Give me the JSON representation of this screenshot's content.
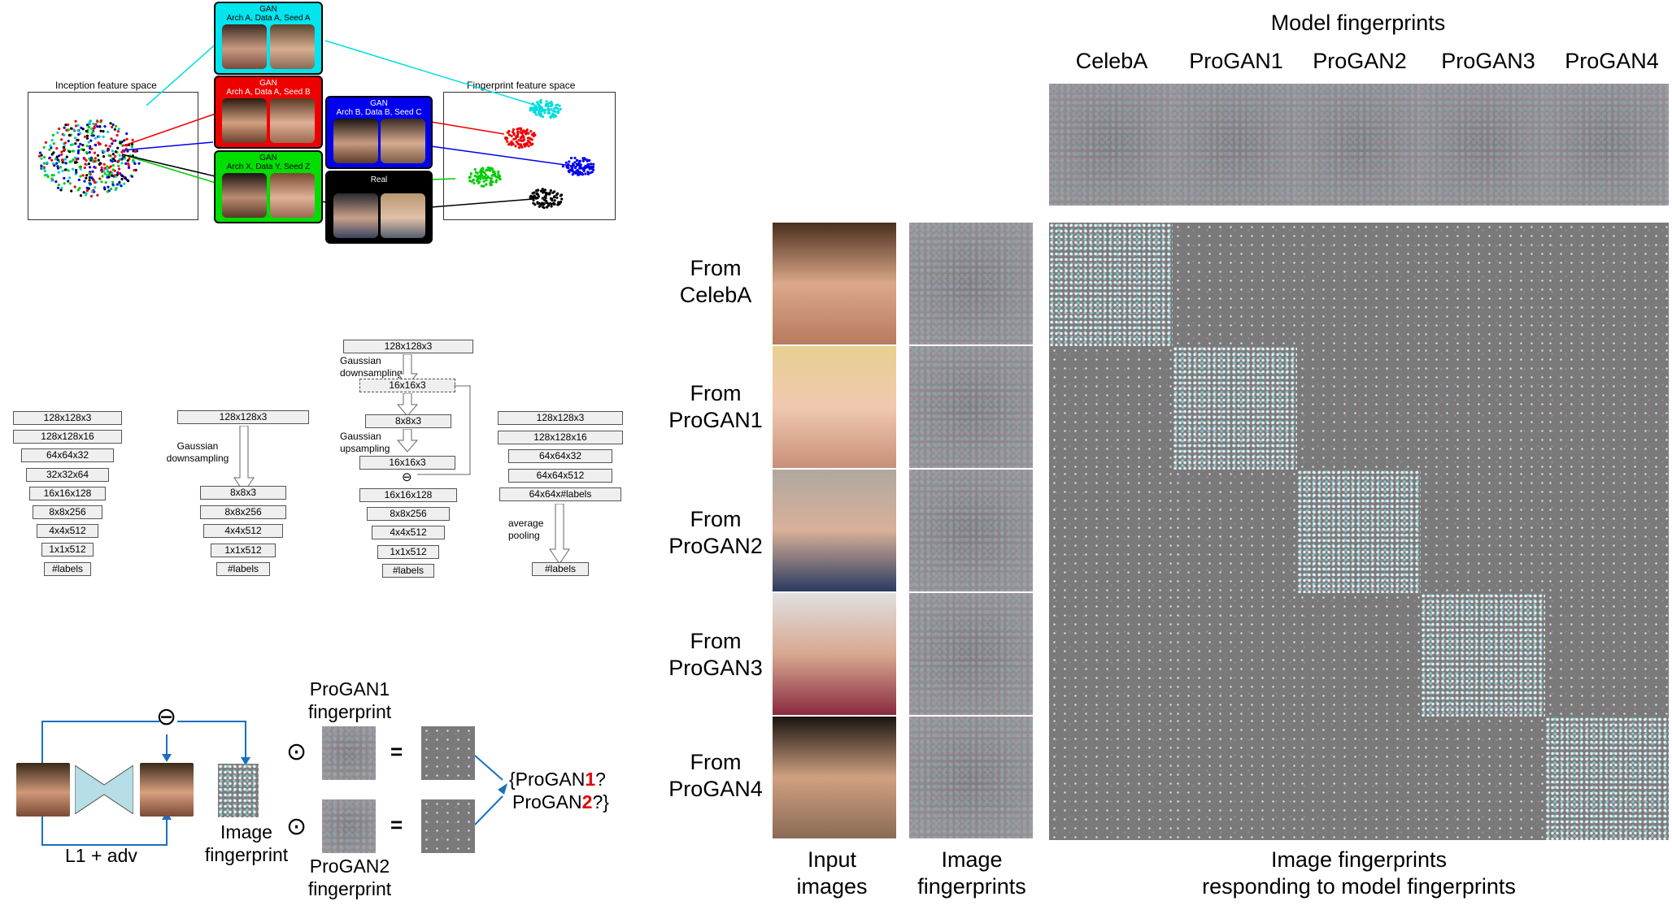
{
  "top_left": {
    "inception_label": "Inception feature space",
    "fingerprint_label": "Fingerprint feature space",
    "groups": [
      {
        "title": "GAN",
        "sub": "Arch A, Data A, Seed A",
        "color": "#00e5ee"
      },
      {
        "title": "GAN",
        "sub": "Arch A, Data A, Seed B",
        "color": "#ee0000"
      },
      {
        "title": "GAN",
        "sub": "Arch B, Data B, Seed C",
        "color": "#0000ee"
      },
      {
        "title": "GAN",
        "sub": "Arch X, Data Y, Seed Z",
        "color": "#00dd00"
      },
      {
        "title": "Real",
        "sub": "",
        "color": "#000000"
      }
    ]
  },
  "architectures": {
    "col1": [
      "128x128x3",
      "128x128x16",
      "64x64x32",
      "32x32x64",
      "16x16x128",
      "8x8x256",
      "4x4x512",
      "1x1x512",
      "#labels"
    ],
    "col2_top": "128x128x3",
    "col2_note": "Gaussian downsampling",
    "col2": [
      "8x8x3",
      "8x8x256",
      "4x4x512",
      "1x1x512",
      "#labels"
    ],
    "col3_top": "128x128x3",
    "col3_note1": "Gaussian downsampling",
    "col3_mid": "16x16x3",
    "col3_a": "8x8x3",
    "col3_note2": "Gaussian upsampling",
    "col3_b": "16x16x3",
    "col3_minus": "⊖",
    "col3": [
      "16x16x128",
      "8x8x256",
      "4x4x512",
      "1x1x512",
      "#labels"
    ],
    "col4": [
      "128x128x3",
      "128x128x16",
      "64x64x32",
      "64x64x512",
      "64x64x#labels"
    ],
    "col4_note": "average pooling",
    "col4_end": "#labels"
  },
  "bottom_left": {
    "minus": "⊖",
    "loss": "L1 + adv",
    "image_fp": "Image\nfingerprint",
    "odot": "⊙",
    "equals": "=",
    "fp1": "ProGAN1\nfingerprint",
    "fp2": "ProGAN2\nfingerprint",
    "result_open": "{ProGAN",
    "result_1": "1",
    "result_q1": "?",
    "result_mid": "ProGAN",
    "result_2": "2",
    "result_q2": "?}",
    "accent": "#e00000"
  },
  "right": {
    "model_fp_title": "Model fingerprints",
    "columns": [
      "CelebA",
      "ProGAN1",
      "ProGAN2",
      "ProGAN3",
      "ProGAN4"
    ],
    "rows": [
      "From\nCelebA",
      "From\nProGAN1",
      "From\nProGAN2",
      "From\nProGAN3",
      "From\nProGAN4"
    ],
    "input_label": "Input\nimages",
    "image_fp_label": "Image\nfingerprints",
    "response_label": "Image fingerprints\nresponding to model fingerprints"
  }
}
